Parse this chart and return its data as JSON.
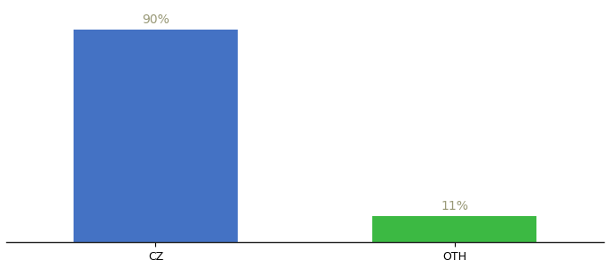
{
  "categories": [
    "CZ",
    "OTH"
  ],
  "values": [
    90,
    11
  ],
  "bar_colors": [
    "#4472c4",
    "#3cb943"
  ],
  "label_texts": [
    "90%",
    "11%"
  ],
  "label_color": "#999977",
  "background_color": "#ffffff",
  "ylim": [
    0,
    100
  ],
  "bar_width": 0.55,
  "label_fontsize": 10,
  "tick_fontsize": 9,
  "x_positions": [
    1,
    2
  ]
}
